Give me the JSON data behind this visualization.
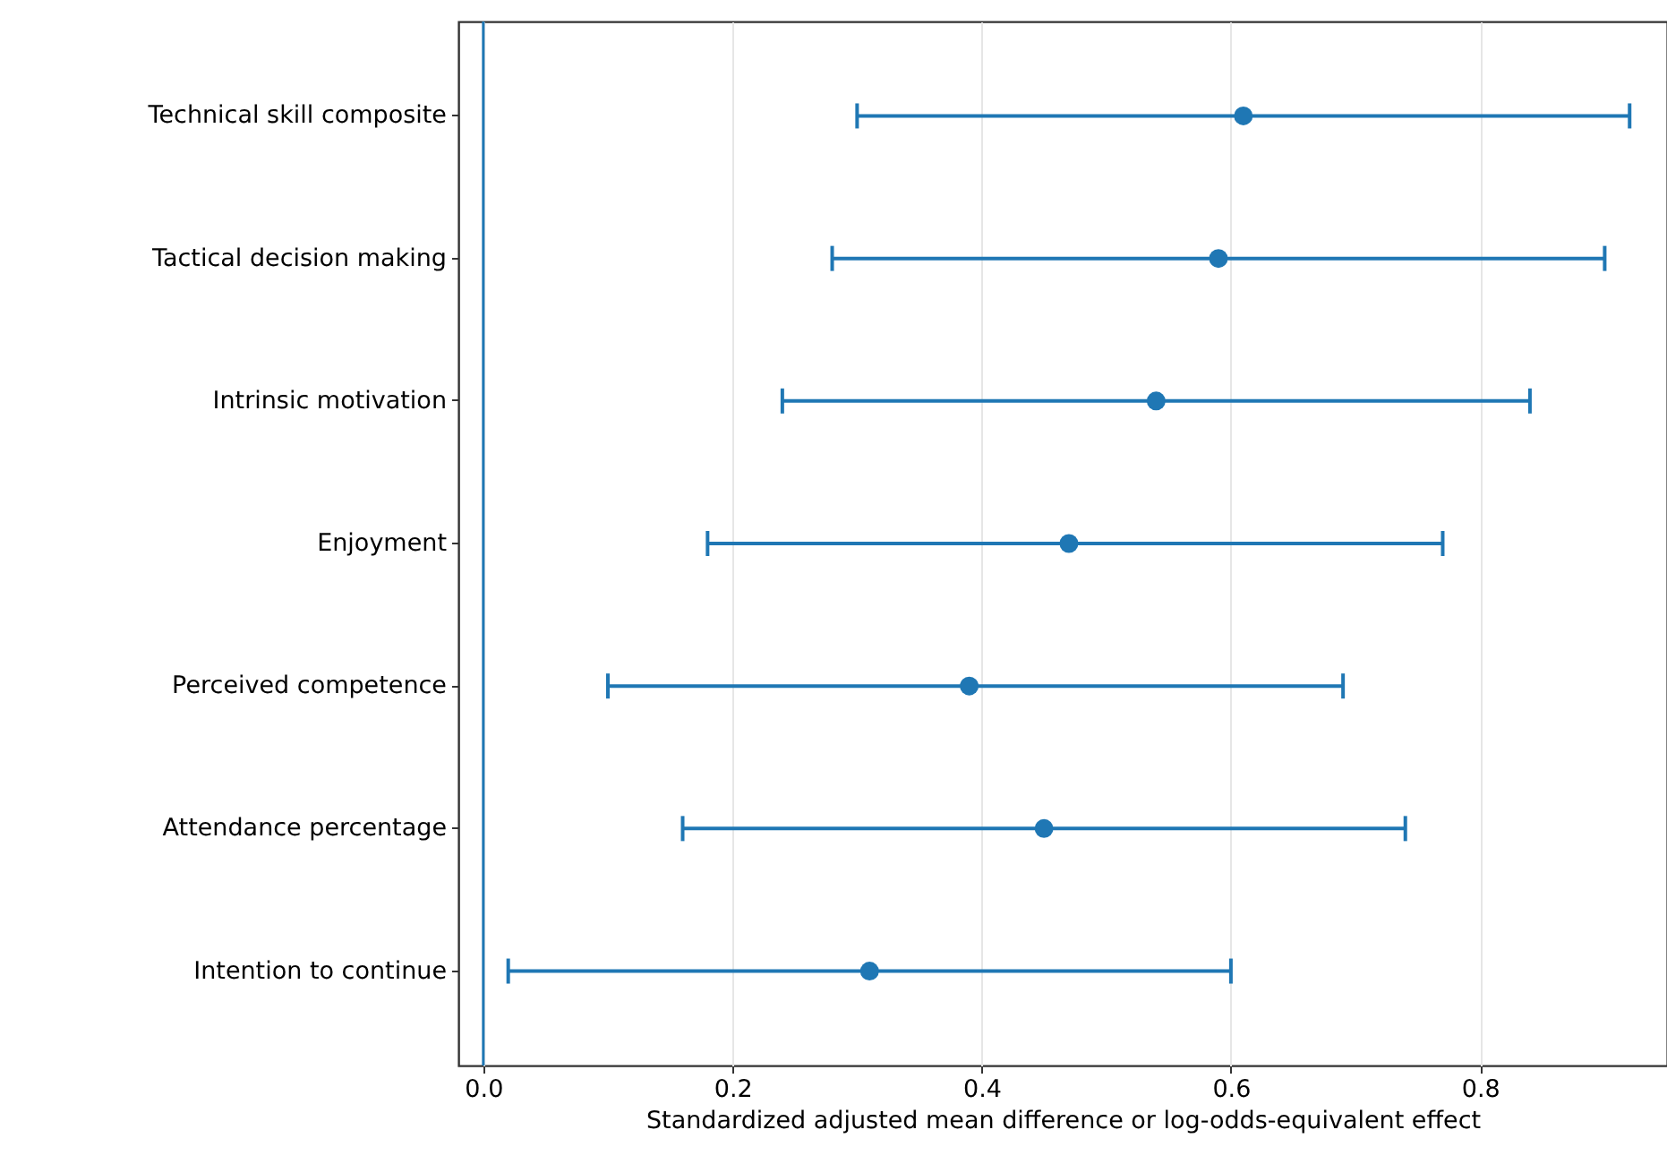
{
  "chart_data": {
    "type": "scatter",
    "orientation": "horizontal",
    "xlabel": "Standardized adjusted mean difference or log-odds-equivalent effect",
    "categories": [
      "Technical skill composite",
      "Tactical decision making",
      "Intrinsic motivation",
      "Enjoyment",
      "Perceived competence",
      "Attendance percentage",
      "Intention to continue"
    ],
    "series": [
      {
        "color": "#1f77b4",
        "values": [
          0.61,
          0.59,
          0.54,
          0.47,
          0.39,
          0.45,
          0.31
        ],
        "errors": [
          [
            0.3,
            0.92
          ],
          [
            0.28,
            0.9
          ],
          [
            0.24,
            0.84
          ],
          [
            0.18,
            0.77
          ],
          [
            0.1,
            0.69
          ],
          [
            0.16,
            0.74
          ],
          [
            0.02,
            0.6
          ]
        ]
      }
    ],
    "xlim": [
      -0.02,
      0.95
    ],
    "xticks": [
      {
        "value": 0,
        "label": "0.0"
      },
      0.2,
      0.4,
      0.6,
      0.8
    ],
    "ref_lines": [
      {
        "axis": "x",
        "value": 0,
        "color": "#1f77b4"
      }
    ],
    "grid": "x",
    "marker": "circle"
  }
}
